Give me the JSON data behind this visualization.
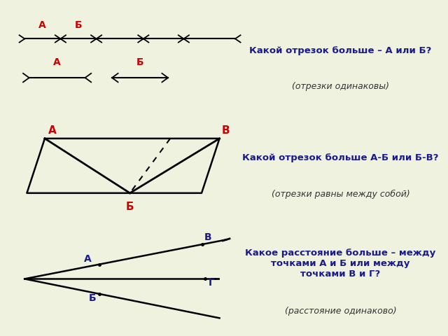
{
  "bg_color": "#eef2df",
  "panel1_bg": "#ffffff",
  "panel2_bg": "#cfe0ec",
  "panel3_bg": "#cfe0ec",
  "title1": "Какой отрезок больше – А или Б?",
  "sub1": "(отрезки одинаковы)",
  "title2": "Какой отрезок больше А-Б или Б-В?",
  "sub2": "(отрезки равны между собой)",
  "title3": "Какое расстояние больше – между\nточками А и Б или между\nточками В и Г?",
  "sub3": "(расстояние одинаково)",
  "text_color_main": "#1a1a8c",
  "text_color_sub": "#333333",
  "label_color_red": "#cc0000",
  "label_color_blue": "#1a1a8c"
}
